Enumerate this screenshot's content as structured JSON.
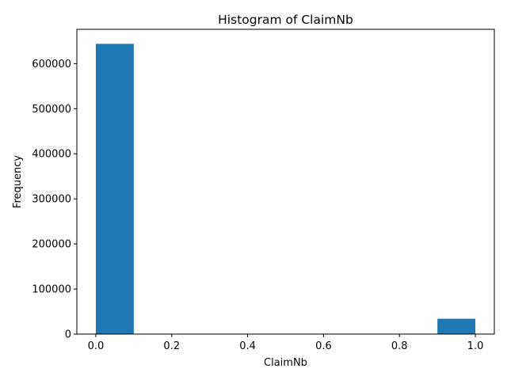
{
  "chart_data": {
    "type": "bar",
    "title": "Histogram of ClaimNb",
    "xlabel": "ClaimNb",
    "ylabel": "Frequency",
    "bin_edges": [
      0.0,
      0.1,
      0.2,
      0.3,
      0.4,
      0.5,
      0.6,
      0.7,
      0.8,
      0.9,
      1.0
    ],
    "values": [
      643953,
      0,
      0,
      0,
      0,
      0,
      0,
      0,
      0,
      34060
    ],
    "xlim": [
      -0.05,
      1.05
    ],
    "ylim": [
      0,
      676163
    ],
    "xticks": [
      0.0,
      0.2,
      0.4,
      0.6,
      0.8,
      1.0
    ],
    "xtick_labels": [
      "0.0",
      "0.2",
      "0.4",
      "0.6",
      "0.8",
      "1.0"
    ],
    "yticks": [
      0,
      100000,
      200000,
      300000,
      400000,
      500000,
      600000
    ],
    "ytick_labels": [
      "0",
      "100000",
      "200000",
      "300000",
      "400000",
      "500000",
      "600000"
    ],
    "grid": false,
    "legend": "none",
    "bar_color": "#1f77b4"
  }
}
